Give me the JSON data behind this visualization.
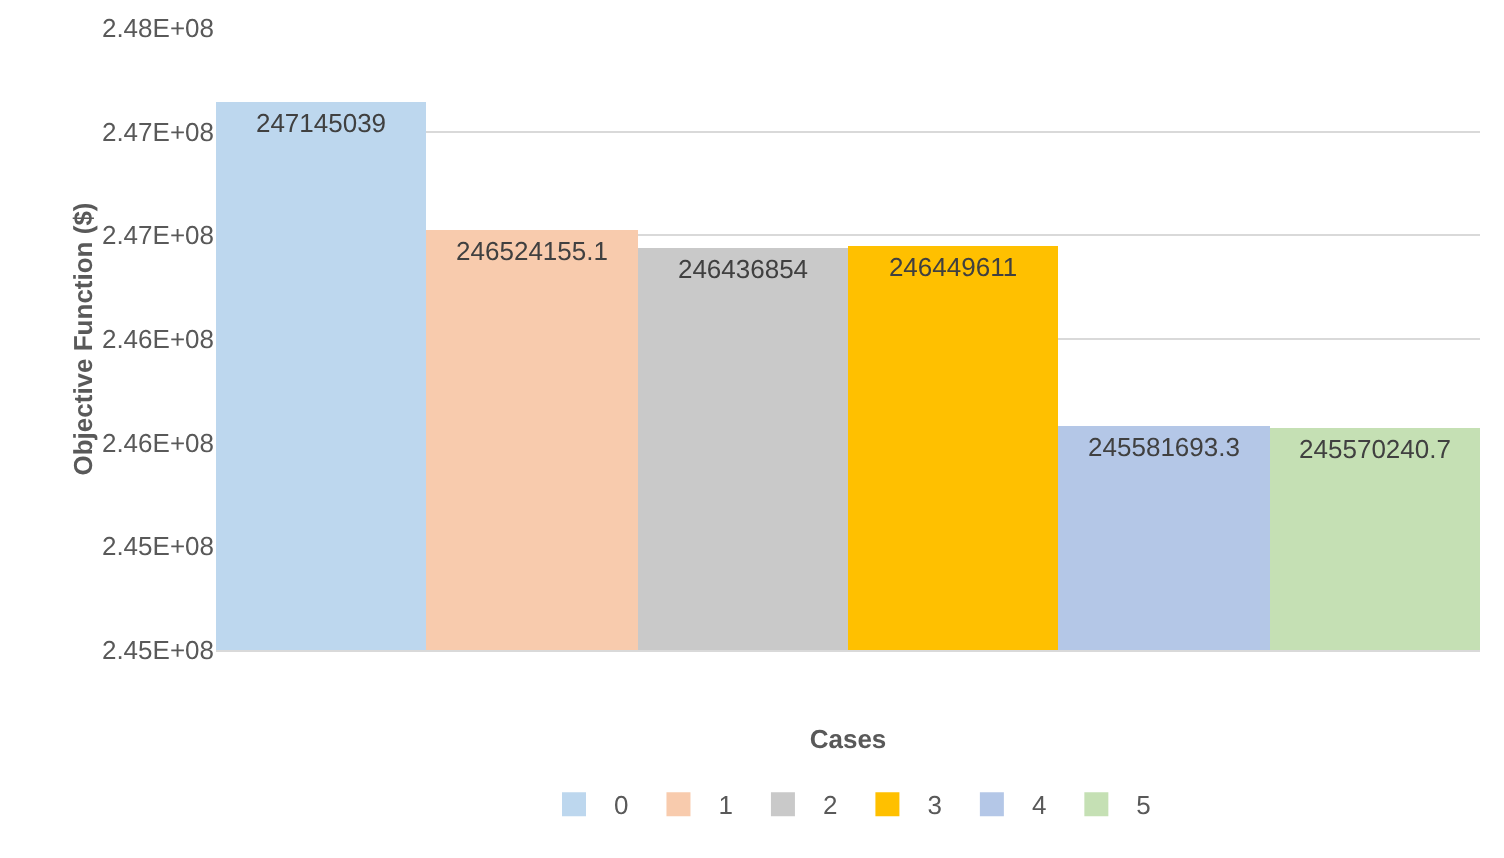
{
  "chart_data": {
    "type": "bar",
    "xlabel": "Cases",
    "ylabel": "Objective Function ($)",
    "categories": [
      null
    ],
    "series": [
      {
        "name": "0",
        "color": "#bdd7ee",
        "values": [
          247145039
        ]
      },
      {
        "name": "1",
        "color": "#f8cbad",
        "values": [
          246524155.1
        ]
      },
      {
        "name": "2",
        "color": "#c9c9c9",
        "values": [
          246436854
        ]
      },
      {
        "name": "3",
        "color": "#ffc000",
        "values": [
          246449611
        ]
      },
      {
        "name": "4",
        "color": "#b4c7e7",
        "values": [
          245581693.3
        ]
      },
      {
        "name": "5",
        "color": "#c5e0b4",
        "values": [
          245570240.7
        ]
      }
    ],
    "ylim": [
      244500000,
      247500000
    ],
    "yticks": [
      {
        "value": 244500000,
        "label": "2.45E+08"
      },
      {
        "value": 245000000,
        "label": "2.45E+08"
      },
      {
        "value": 245500000,
        "label": "2.46E+08"
      },
      {
        "value": 246000000,
        "label": "2.46E+08"
      },
      {
        "value": 246500000,
        "label": "2.47E+08"
      },
      {
        "value": 247000000,
        "label": "2.47E+08"
      },
      {
        "value": 247500000,
        "label": "2.48E+08"
      }
    ],
    "grid": "y",
    "legend": "bottom",
    "data_labels": true
  }
}
